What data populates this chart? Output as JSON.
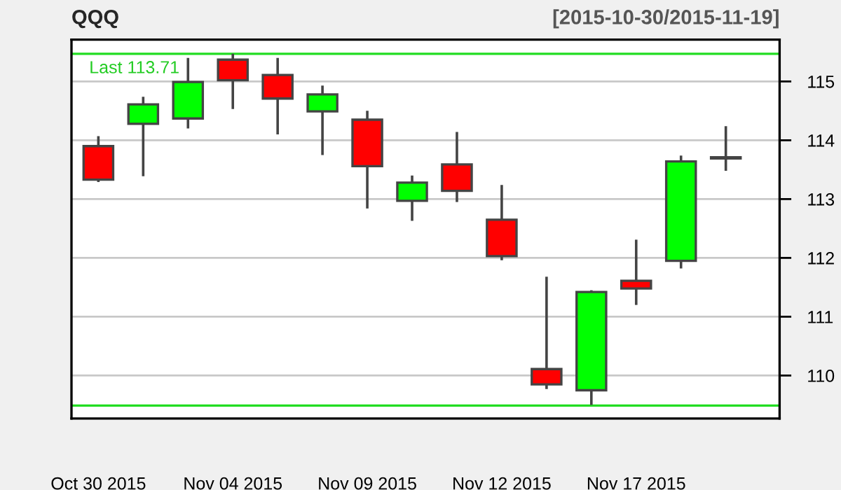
{
  "chart_data": {
    "type": "candlestick",
    "title": "QQQ",
    "subtitle": "[2015-10-30/2015-11-19]",
    "categories": [
      "Oct 30 2015",
      null,
      null,
      "Nov 04 2015",
      null,
      null,
      "Nov 09 2015",
      null,
      null,
      "Nov 12 2015",
      null,
      null,
      "Nov 17 2015",
      null,
      null
    ],
    "ohlc": [
      [
        113.9,
        114.07,
        113.29,
        113.33
      ],
      [
        114.28,
        114.74,
        113.39,
        114.61
      ],
      [
        114.37,
        115.4,
        114.2,
        114.99
      ],
      [
        115.37,
        115.47,
        114.53,
        115.02
      ],
      [
        115.11,
        115.4,
        114.1,
        114.71
      ],
      [
        114.49,
        114.93,
        113.75,
        114.78
      ],
      [
        114.35,
        114.5,
        112.84,
        113.56
      ],
      [
        112.97,
        113.4,
        112.63,
        113.28
      ],
      [
        113.59,
        114.14,
        112.95,
        113.14
      ],
      [
        112.65,
        113.24,
        111.96,
        112.03
      ],
      [
        110.11,
        111.68,
        109.77,
        109.85
      ],
      [
        109.75,
        111.45,
        109.5,
        111.42
      ],
      [
        111.61,
        112.31,
        111.2,
        111.48
      ],
      [
        111.95,
        113.74,
        111.82,
        113.64
      ],
      [
        113.69,
        114.24,
        113.48,
        113.71
      ]
    ],
    "colors": [
      "#ff0000",
      "#00ff00",
      "#00ff00",
      "#ff0000",
      "#ff0000",
      "#00ff00",
      "#ff0000",
      "#00ff00",
      "#ff0000",
      "#ff0000",
      "#ff0000",
      "#00ff00",
      "#ff0000",
      "#00ff00",
      "#444444"
    ],
    "ylim": [
      109.27,
      115.71
    ],
    "yticks": [
      110,
      111,
      112,
      113,
      114,
      115
    ],
    "grid": "y",
    "ref_lines": [
      {
        "axis": "y",
        "value": 115.47,
        "color": "#22dd22"
      },
      {
        "axis": "y",
        "value": 109.49,
        "color": "#22dd22"
      }
    ],
    "annotations": [
      "Last 113.71"
    ]
  }
}
